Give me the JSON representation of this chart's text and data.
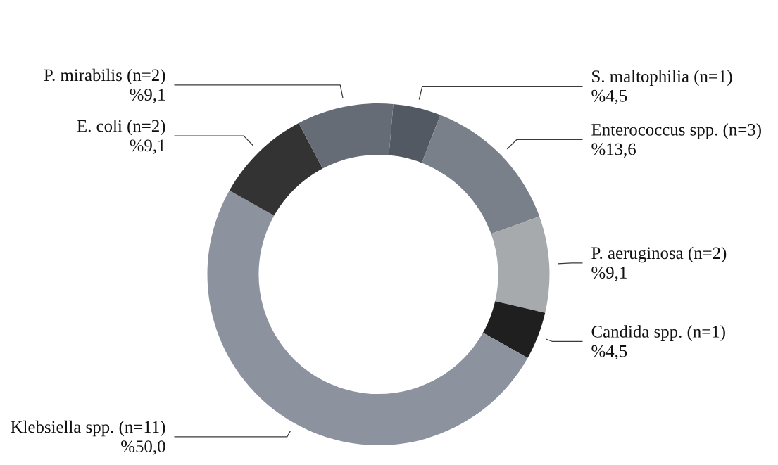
{
  "chart_data": {
    "type": "donut",
    "categories": [
      "S. maltophilia (n=1)",
      "Enterococcus spp. (n=3)",
      "P. aeruginosa (n=2)",
      "Candida spp. (n=1)",
      "Klebsiella spp. (n=11)",
      "E. coli (n=2)",
      "P. mirabilis (n=2)"
    ],
    "values": [
      4.5,
      13.6,
      9.1,
      4.5,
      50.0,
      9.1,
      9.1
    ],
    "value_labels": [
      "%4,5",
      "%13,6",
      "%9,1",
      "%4,5",
      "%50,0",
      "%9,1",
      "%9,1"
    ],
    "colors": [
      "#535962",
      "#7a8089",
      "#a7aaad",
      "#1f1f1f",
      "#8c929e",
      "#333333",
      "#666c75"
    ]
  }
}
